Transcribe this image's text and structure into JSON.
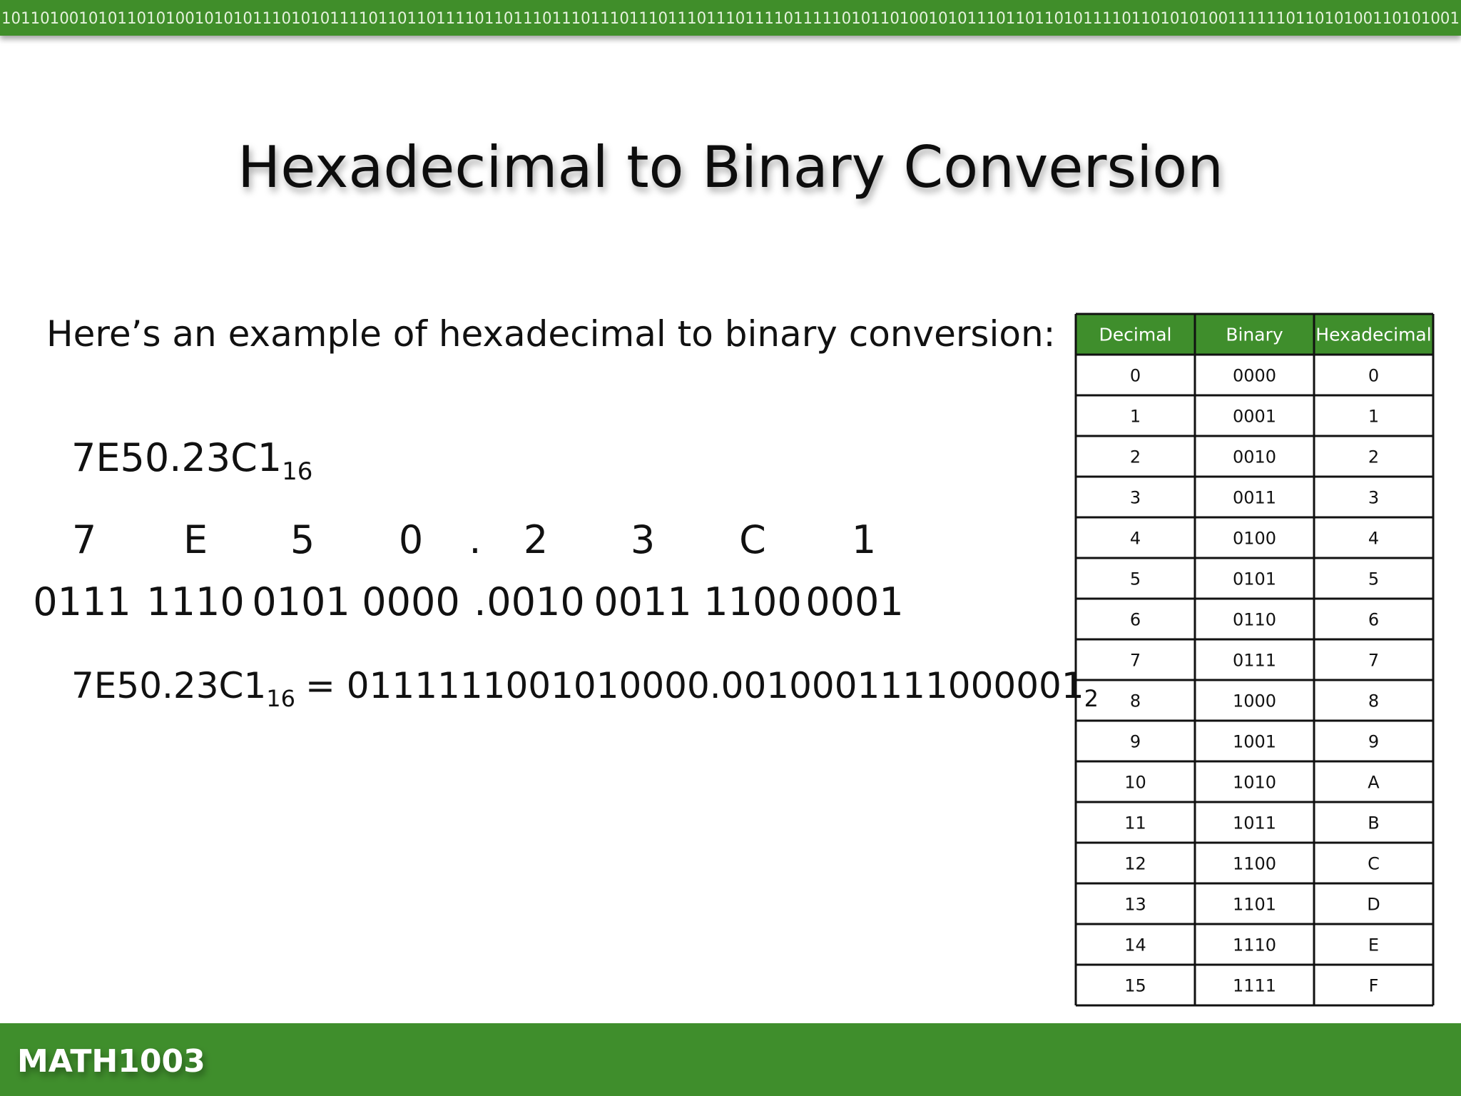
{
  "header": {
    "binary_strip": "1011010010101101010010101011101010111101101101111011011101110111011101110111011110111110101101001010111011011010111101101010100111111011010100110101001"
  },
  "title": "Hexadecimal to Binary Conversion",
  "intro": "Here’s an example of hexadecimal to binary conversion:",
  "example": {
    "number": "7E50.23C1",
    "base": "16",
    "hex_digits": [
      "7",
      "E",
      "5",
      "0",
      ".",
      "2",
      "3",
      "C",
      "1"
    ],
    "binary_groups": [
      "0111",
      "1110",
      "0101",
      "0000",
      ".",
      "0010",
      "0011",
      "1100",
      "0001"
    ],
    "result": {
      "hex": "7E50.23C1",
      "hex_base": "16",
      "equals": "= 0111111001010000.0010001111000001",
      "binary_base": "2"
    }
  },
  "table": {
    "columns": [
      "Decimal",
      "Binary",
      "Hexadecimal"
    ],
    "rows": [
      [
        "0",
        "0000",
        "0"
      ],
      [
        "1",
        "0001",
        "1"
      ],
      [
        "2",
        "0010",
        "2"
      ],
      [
        "3",
        "0011",
        "3"
      ],
      [
        "4",
        "0100",
        "4"
      ],
      [
        "5",
        "0101",
        "5"
      ],
      [
        "6",
        "0110",
        "6"
      ],
      [
        "7",
        "0111",
        "7"
      ],
      [
        "8",
        "1000",
        "8"
      ],
      [
        "9",
        "1001",
        "9"
      ],
      [
        "10",
        "1010",
        "A"
      ],
      [
        "11",
        "1011",
        "B"
      ],
      [
        "12",
        "1100",
        "C"
      ],
      [
        "13",
        "1101",
        "D"
      ],
      [
        "14",
        "1110",
        "E"
      ],
      [
        "15",
        "1111",
        "F"
      ]
    ]
  },
  "footer": {
    "course": "MATH1003"
  }
}
